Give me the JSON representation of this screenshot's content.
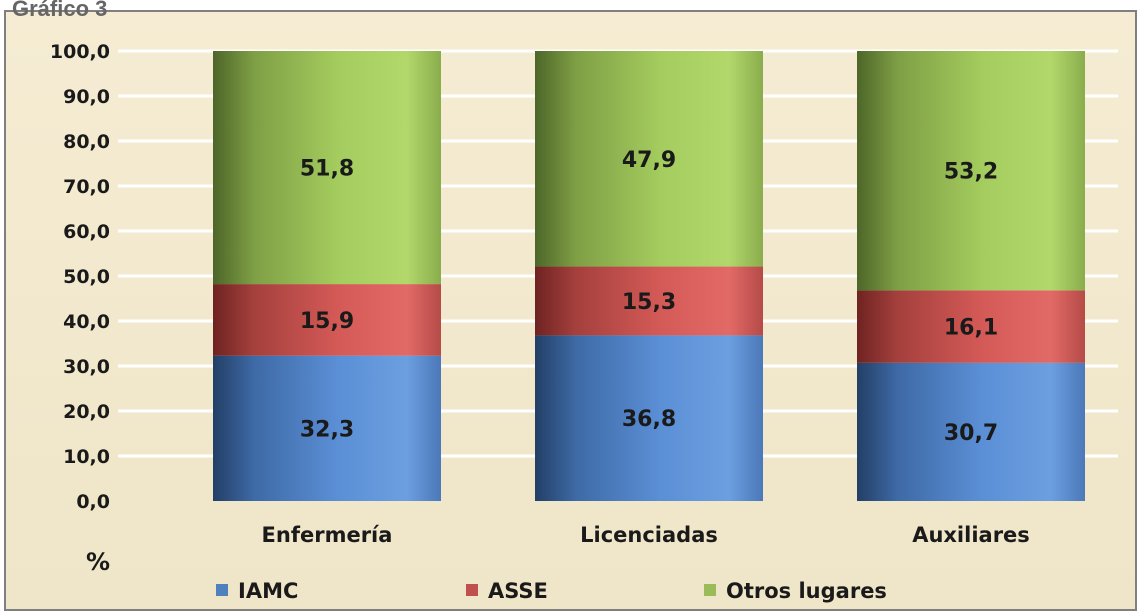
{
  "chart_data": {
    "type": "bar",
    "stacked": true,
    "title": "Gráfico 3",
    "ylabel": "%",
    "ylim": [
      0,
      100
    ],
    "yticks": [
      "0,0",
      "10,0",
      "20,0",
      "30,0",
      "40,0",
      "50,0",
      "60,0",
      "70,0",
      "80,0",
      "90,0",
      "100,0"
    ],
    "grid": true,
    "legend_position": "bottom",
    "categories": [
      "Enfermería",
      "Licenciadas",
      "Auxiliares"
    ],
    "series": [
      {
        "name": "IAMC",
        "values": [
          32.3,
          36.8,
          30.7
        ],
        "labels": [
          "32,3",
          "36,8",
          "30,7"
        ],
        "color": "#4f81bd"
      },
      {
        "name": "ASSE",
        "values": [
          15.9,
          15.3,
          16.1
        ],
        "labels": [
          "15,9",
          "15,3",
          "16,1"
        ],
        "color": "#c0504d"
      },
      {
        "name": "Otros lugares",
        "values": [
          51.8,
          47.9,
          53.2
        ],
        "labels": [
          "51,8",
          "47,9",
          "53,2"
        ],
        "color": "#9bbb59"
      }
    ]
  }
}
